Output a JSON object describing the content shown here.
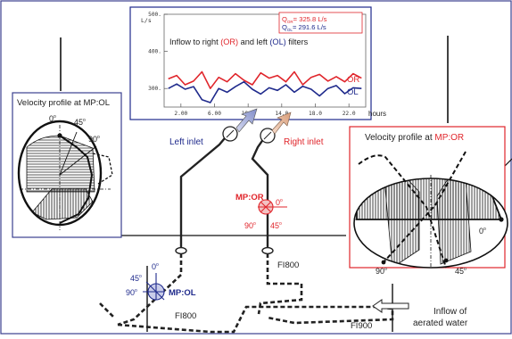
{
  "colors": {
    "red": "#e0252b",
    "blue": "#1f2a8c",
    "frame": "#3b3f8f",
    "redframe": "#e0252b",
    "pipe": "#222222",
    "tan": "#e3b79a",
    "lavender": "#aab3dc"
  },
  "inset_chart": {
    "title_parts": [
      "Inflow to right ",
      "(OR)",
      " and left ",
      "(OL)",
      " filters"
    ],
    "unit": "L/s",
    "xlabel": "hours",
    "legend": {
      "or_label": "OR",
      "ol_label": "OL",
      "q_or_sub": "OR",
      "q_or_value": "= 325.8 L/s",
      "q_ol_sub": "OL",
      "q_ol_value": "= 291.6 L/s"
    }
  },
  "chart_data": {
    "type": "line",
    "xlim": [
      0,
      24
    ],
    "ylim": [
      250,
      500
    ],
    "x_ticks": [
      "2.00",
      "6.00",
      "10.0",
      "14.0",
      "18.0",
      "22.0"
    ],
    "y_ticks": [
      "300.",
      "400.",
      "500."
    ],
    "series": [
      {
        "name": "OR",
        "color": "#e0252b",
        "x": [
          0.5,
          1.5,
          2.5,
          3.5,
          4.5,
          5.5,
          6.5,
          7.5,
          8.5,
          9.5,
          10.5,
          11.5,
          12.5,
          13.5,
          14.5,
          15.5,
          16.5,
          17.5,
          18.5,
          19.5,
          20.5,
          21.5,
          22.5,
          23.5
        ],
        "y": [
          326,
          335,
          310,
          320,
          345,
          300,
          330,
          318,
          340,
          322,
          310,
          342,
          328,
          335,
          318,
          345,
          310,
          330,
          338,
          320,
          332,
          318,
          340,
          328
        ]
      },
      {
        "name": "OL",
        "color": "#1f2a8c",
        "x": [
          0.5,
          1.5,
          2.5,
          3.5,
          4.5,
          5.5,
          6.5,
          7.5,
          8.5,
          9.5,
          10.5,
          11.5,
          12.5,
          13.5,
          14.5,
          15.5,
          16.5,
          17.5,
          18.5,
          19.5,
          20.5,
          21.5,
          22.5,
          23.5
        ],
        "y": [
          300,
          312,
          298,
          305,
          270,
          262,
          300,
          290,
          305,
          318,
          298,
          285,
          302,
          295,
          310,
          290,
          306,
          298,
          280,
          300,
          308,
          286,
          302,
          300
        ]
      }
    ]
  },
  "labels": {
    "profile_ol_title": "Velocity profile at MP:OL",
    "profile_or_title_prefix": "Velocity profile at ",
    "profile_or_title_mp": "MP:OR",
    "left_inlet": "Left inlet",
    "right_inlet": "Right inlet",
    "mp_or": "MP:OR",
    "mp_ol": "MP:OL",
    "fi800_upper": "FI800",
    "fi800_lower": "FI800",
    "fi900": "FI900",
    "inflow_line1": "Inflow of",
    "inflow_line2": "aerated water",
    "ang_0": "0",
    "ang_45": "45",
    "ang_90": "90",
    "deg": "o"
  }
}
